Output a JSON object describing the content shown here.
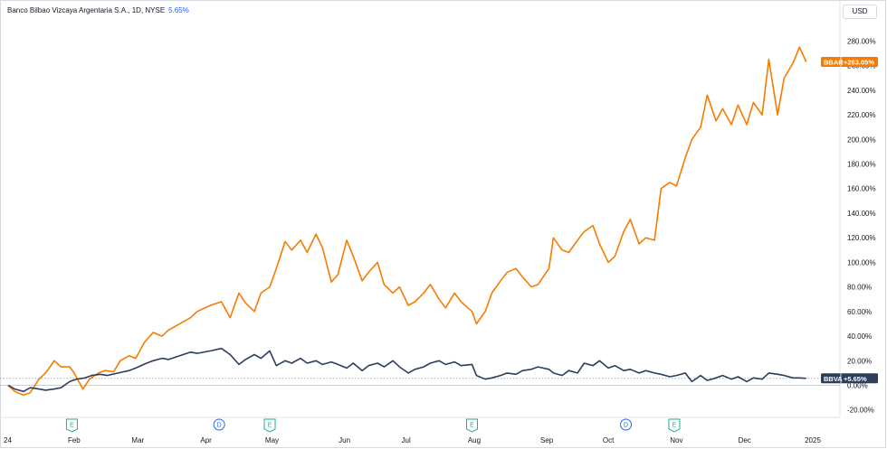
{
  "header": {
    "title": "Banco Bilbao Vizcaya Argentaria S.A., 1D, NYSE",
    "change": "5.65%",
    "currency_button": "USD"
  },
  "colors": {
    "bbar": "#f57c00",
    "bbva": "#2c3e5c",
    "accent": "#2962ff",
    "event_e": "#22ab94",
    "event_d": "#2962ff"
  },
  "chart_data": {
    "type": "line",
    "title": "Banco Bilbao Vizcaya Argentaria S.A., 1D, NYSE",
    "yunit": "%",
    "ylim": [
      -25,
      295
    ],
    "y_ticks": [
      280,
      260,
      240,
      220,
      200,
      180,
      160,
      140,
      120,
      100,
      80,
      60,
      40,
      20,
      0,
      -20
    ],
    "y_tick_labels": [
      "280.00%",
      "260.00%",
      "240.00%",
      "220.00%",
      "200.00%",
      "180.00%",
      "160.00%",
      "140.00%",
      "120.00%",
      "100.00%",
      "80.00%",
      "60.00%",
      "40.00%",
      "20.00%",
      "0.00%",
      "-20.00%"
    ],
    "x_ticks": [
      {
        "label": "24",
        "date": "2024-01-02"
      },
      {
        "label": "Feb",
        "date": "2024-02-01"
      },
      {
        "label": "Mar",
        "date": "2024-03-01"
      },
      {
        "label": "Apr",
        "date": "2024-04-01"
      },
      {
        "label": "May",
        "date": "2024-05-01"
      },
      {
        "label": "Jun",
        "date": "2024-06-03"
      },
      {
        "label": "Jul",
        "date": "2024-07-01"
      },
      {
        "label": "Aug",
        "date": "2024-08-01"
      },
      {
        "label": "Sep",
        "date": "2024-09-03"
      },
      {
        "label": "Oct",
        "date": "2024-10-01"
      },
      {
        "label": "Nov",
        "date": "2024-11-01"
      },
      {
        "label": "Dec",
        "date": "2024-12-02"
      },
      {
        "label": "2025",
        "date": "2025-01-02"
      }
    ],
    "grid": false,
    "series": [
      {
        "name": "BBAR",
        "color": "#f57c00",
        "last_label": "+263.05%",
        "points": [
          [
            "2024-01-02",
            0
          ],
          [
            "2024-01-05",
            -5
          ],
          [
            "2024-01-09",
            -8
          ],
          [
            "2024-01-12",
            -6
          ],
          [
            "2024-01-16",
            5
          ],
          [
            "2024-01-19",
            10
          ],
          [
            "2024-01-23",
            20
          ],
          [
            "2024-01-26",
            15
          ],
          [
            "2024-01-30",
            15
          ],
          [
            "2024-02-01",
            10
          ],
          [
            "2024-02-05",
            -3
          ],
          [
            "2024-02-08",
            5
          ],
          [
            "2024-02-12",
            10
          ],
          [
            "2024-02-15",
            12
          ],
          [
            "2024-02-19",
            11
          ],
          [
            "2024-02-22",
            20
          ],
          [
            "2024-02-26",
            24
          ],
          [
            "2024-02-29",
            22
          ],
          [
            "2024-03-04",
            35
          ],
          [
            "2024-03-08",
            43
          ],
          [
            "2024-03-12",
            40
          ],
          [
            "2024-03-15",
            45
          ],
          [
            "2024-03-20",
            50
          ],
          [
            "2024-03-25",
            55
          ],
          [
            "2024-03-28",
            60
          ],
          [
            "2024-04-03",
            65
          ],
          [
            "2024-04-08",
            68
          ],
          [
            "2024-04-12",
            55
          ],
          [
            "2024-04-16",
            75
          ],
          [
            "2024-04-19",
            67
          ],
          [
            "2024-04-23",
            60
          ],
          [
            "2024-04-26",
            75
          ],
          [
            "2024-04-30",
            80
          ],
          [
            "2024-05-03",
            95
          ],
          [
            "2024-05-07",
            117
          ],
          [
            "2024-05-10",
            110
          ],
          [
            "2024-05-14",
            118
          ],
          [
            "2024-05-17",
            108
          ],
          [
            "2024-05-21",
            123
          ],
          [
            "2024-05-24",
            112
          ],
          [
            "2024-05-28",
            84
          ],
          [
            "2024-05-31",
            90
          ],
          [
            "2024-06-04",
            118
          ],
          [
            "2024-06-07",
            105
          ],
          [
            "2024-06-11",
            85
          ],
          [
            "2024-06-14",
            92
          ],
          [
            "2024-06-18",
            100
          ],
          [
            "2024-06-21",
            82
          ],
          [
            "2024-06-25",
            75
          ],
          [
            "2024-06-28",
            80
          ],
          [
            "2024-07-02",
            65
          ],
          [
            "2024-07-05",
            68
          ],
          [
            "2024-07-09",
            75
          ],
          [
            "2024-07-12",
            82
          ],
          [
            "2024-07-16",
            70
          ],
          [
            "2024-07-19",
            63
          ],
          [
            "2024-07-23",
            75
          ],
          [
            "2024-07-26",
            68
          ],
          [
            "2024-07-31",
            60
          ],
          [
            "2024-08-02",
            50
          ],
          [
            "2024-08-06",
            60
          ],
          [
            "2024-08-09",
            75
          ],
          [
            "2024-08-13",
            85
          ],
          [
            "2024-08-16",
            92
          ],
          [
            "2024-08-20",
            95
          ],
          [
            "2024-08-23",
            88
          ],
          [
            "2024-08-27",
            80
          ],
          [
            "2024-08-30",
            82
          ],
          [
            "2024-09-04",
            95
          ],
          [
            "2024-09-06",
            120
          ],
          [
            "2024-09-10",
            110
          ],
          [
            "2024-09-13",
            108
          ],
          [
            "2024-09-17",
            118
          ],
          [
            "2024-09-20",
            125
          ],
          [
            "2024-09-24",
            130
          ],
          [
            "2024-09-27",
            115
          ],
          [
            "2024-10-01",
            100
          ],
          [
            "2024-10-04",
            105
          ],
          [
            "2024-10-08",
            125
          ],
          [
            "2024-10-11",
            135
          ],
          [
            "2024-10-15",
            115
          ],
          [
            "2024-10-18",
            120
          ],
          [
            "2024-10-22",
            118
          ],
          [
            "2024-10-25",
            160
          ],
          [
            "2024-10-29",
            165
          ],
          [
            "2024-11-01",
            162
          ],
          [
            "2024-11-05",
            185
          ],
          [
            "2024-11-08",
            200
          ],
          [
            "2024-11-12",
            210
          ],
          [
            "2024-11-15",
            236
          ],
          [
            "2024-11-19",
            215
          ],
          [
            "2024-11-22",
            225
          ],
          [
            "2024-11-26",
            212
          ],
          [
            "2024-11-29",
            228
          ],
          [
            "2024-12-03",
            212
          ],
          [
            "2024-12-06",
            230
          ],
          [
            "2024-12-10",
            220
          ],
          [
            "2024-12-13",
            265
          ],
          [
            "2024-12-17",
            220
          ],
          [
            "2024-12-20",
            250
          ],
          [
            "2024-12-24",
            262
          ],
          [
            "2024-12-27",
            275
          ],
          [
            "2024-12-30",
            263.05
          ]
        ]
      },
      {
        "name": "BBVA",
        "color": "#2c3e5c",
        "last_label": "+5.65%",
        "points": [
          [
            "2024-01-02",
            0
          ],
          [
            "2024-01-05",
            -3
          ],
          [
            "2024-01-09",
            -5
          ],
          [
            "2024-01-12",
            -2
          ],
          [
            "2024-01-16",
            -3
          ],
          [
            "2024-01-19",
            -4
          ],
          [
            "2024-01-23",
            -3
          ],
          [
            "2024-01-26",
            -2
          ],
          [
            "2024-01-30",
            3
          ],
          [
            "2024-02-02",
            5
          ],
          [
            "2024-02-06",
            6
          ],
          [
            "2024-02-09",
            8
          ],
          [
            "2024-02-13",
            9
          ],
          [
            "2024-02-16",
            8
          ],
          [
            "2024-02-21",
            10
          ],
          [
            "2024-02-26",
            12
          ],
          [
            "2024-02-29",
            14
          ],
          [
            "2024-03-05",
            18
          ],
          [
            "2024-03-08",
            20
          ],
          [
            "2024-03-12",
            22
          ],
          [
            "2024-03-15",
            21
          ],
          [
            "2024-03-20",
            24
          ],
          [
            "2024-03-25",
            27
          ],
          [
            "2024-03-28",
            26
          ],
          [
            "2024-04-03",
            28
          ],
          [
            "2024-04-08",
            30
          ],
          [
            "2024-04-12",
            25
          ],
          [
            "2024-04-16",
            17
          ],
          [
            "2024-04-19",
            21
          ],
          [
            "2024-04-23",
            25
          ],
          [
            "2024-04-26",
            22
          ],
          [
            "2024-04-30",
            28
          ],
          [
            "2024-05-03",
            16
          ],
          [
            "2024-05-07",
            20
          ],
          [
            "2024-05-10",
            18
          ],
          [
            "2024-05-14",
            22
          ],
          [
            "2024-05-17",
            18
          ],
          [
            "2024-05-21",
            20
          ],
          [
            "2024-05-24",
            17
          ],
          [
            "2024-05-28",
            19
          ],
          [
            "2024-05-31",
            17
          ],
          [
            "2024-06-04",
            14
          ],
          [
            "2024-06-07",
            18
          ],
          [
            "2024-06-11",
            12
          ],
          [
            "2024-06-14",
            16
          ],
          [
            "2024-06-18",
            18
          ],
          [
            "2024-06-21",
            15
          ],
          [
            "2024-06-25",
            20
          ],
          [
            "2024-06-28",
            15
          ],
          [
            "2024-07-02",
            10
          ],
          [
            "2024-07-05",
            13
          ],
          [
            "2024-07-09",
            15
          ],
          [
            "2024-07-12",
            18
          ],
          [
            "2024-07-16",
            20
          ],
          [
            "2024-07-19",
            17
          ],
          [
            "2024-07-23",
            19
          ],
          [
            "2024-07-26",
            16
          ],
          [
            "2024-07-31",
            17
          ],
          [
            "2024-08-02",
            8
          ],
          [
            "2024-08-06",
            5
          ],
          [
            "2024-08-09",
            6
          ],
          [
            "2024-08-13",
            8
          ],
          [
            "2024-08-16",
            10
          ],
          [
            "2024-08-20",
            9
          ],
          [
            "2024-08-23",
            12
          ],
          [
            "2024-08-27",
            13
          ],
          [
            "2024-08-30",
            15
          ],
          [
            "2024-09-04",
            13
          ],
          [
            "2024-09-06",
            10
          ],
          [
            "2024-09-10",
            8
          ],
          [
            "2024-09-13",
            12
          ],
          [
            "2024-09-17",
            10
          ],
          [
            "2024-09-20",
            18
          ],
          [
            "2024-09-24",
            16
          ],
          [
            "2024-09-27",
            20
          ],
          [
            "2024-10-01",
            14
          ],
          [
            "2024-10-04",
            16
          ],
          [
            "2024-10-08",
            12
          ],
          [
            "2024-10-11",
            13
          ],
          [
            "2024-10-15",
            10
          ],
          [
            "2024-10-18",
            12
          ],
          [
            "2024-10-22",
            10
          ],
          [
            "2024-10-25",
            9
          ],
          [
            "2024-10-29",
            7
          ],
          [
            "2024-11-01",
            8
          ],
          [
            "2024-11-05",
            10
          ],
          [
            "2024-11-08",
            3
          ],
          [
            "2024-11-12",
            8
          ],
          [
            "2024-11-15",
            4
          ],
          [
            "2024-11-19",
            6
          ],
          [
            "2024-11-22",
            8
          ],
          [
            "2024-11-26",
            5
          ],
          [
            "2024-11-29",
            7
          ],
          [
            "2024-12-03",
            3
          ],
          [
            "2024-12-06",
            6
          ],
          [
            "2024-12-10",
            5
          ],
          [
            "2024-12-13",
            10
          ],
          [
            "2024-12-17",
            9
          ],
          [
            "2024-12-20",
            8
          ],
          [
            "2024-12-24",
            6
          ],
          [
            "2024-12-27",
            6
          ],
          [
            "2024-12-30",
            5.65
          ]
        ]
      }
    ],
    "events": [
      {
        "type": "E",
        "date": "2024-01-31",
        "color": "#22ab94"
      },
      {
        "type": "D",
        "date": "2024-04-07",
        "color": "#2962ff"
      },
      {
        "type": "E",
        "date": "2024-04-30",
        "color": "#22ab94"
      },
      {
        "type": "E",
        "date": "2024-07-31",
        "color": "#22ab94"
      },
      {
        "type": "D",
        "date": "2024-10-09",
        "color": "#2962ff"
      },
      {
        "type": "E",
        "date": "2024-10-31",
        "color": "#22ab94"
      }
    ]
  }
}
